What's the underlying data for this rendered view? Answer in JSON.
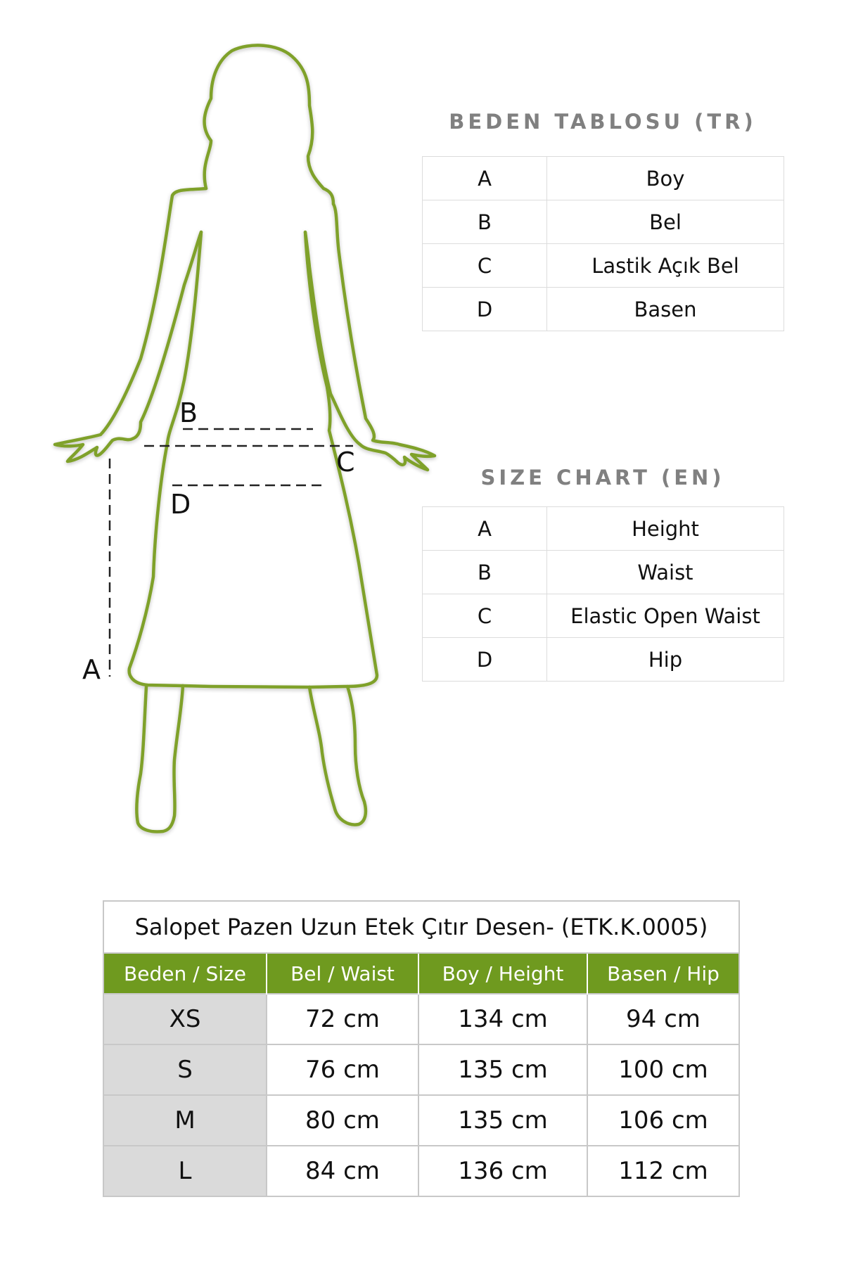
{
  "figure": {
    "labels": {
      "a": "A",
      "b": "B",
      "c": "C",
      "d": "D"
    },
    "outline_color": "#7fa12a"
  },
  "tr_chart": {
    "title": "BEDEN TABLOSU (TR)",
    "rows": [
      {
        "key": "A",
        "value": "Boy"
      },
      {
        "key": "B",
        "value": "Bel"
      },
      {
        "key": "C",
        "value": "Lastik Açık Bel"
      },
      {
        "key": "D",
        "value": "Basen"
      }
    ]
  },
  "en_chart": {
    "title": "SIZE CHART (EN)",
    "rows": [
      {
        "key": "A",
        "value": "Height"
      },
      {
        "key": "B",
        "value": "Waist"
      },
      {
        "key": "C",
        "value": "Elastic Open Waist"
      },
      {
        "key": "D",
        "value": "Hip"
      }
    ]
  },
  "size_table": {
    "title": "Salopet Pazen Uzun Etek Çıtır Desen-  (ETK.K.0005)",
    "header_color": "#6f9a1f",
    "headers": [
      "Beden / Size",
      "Bel / Waist",
      "Boy / Height",
      "Basen / Hip"
    ],
    "rows": [
      [
        "XS",
        "72 cm",
        "134 cm",
        "94 cm"
      ],
      [
        "S",
        "76 cm",
        "135 cm",
        "100 cm"
      ],
      [
        "M",
        "80 cm",
        "135 cm",
        "106 cm"
      ],
      [
        "L",
        "84 cm",
        "136 cm",
        "112 cm"
      ]
    ]
  }
}
